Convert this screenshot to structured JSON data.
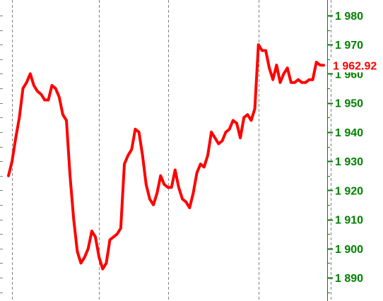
{
  "chart_data": {
    "type": "line",
    "title": "",
    "xlabel": "",
    "ylabel": "",
    "ylim": [
      1885,
      1982
    ],
    "y_ticks": [
      1890,
      1900,
      1910,
      1920,
      1930,
      1940,
      1950,
      1960,
      1970,
      1980
    ],
    "y_tick_labels": [
      "1 890",
      "1 900",
      "1 910",
      "1 920",
      "1 930",
      "1 940",
      "1 950",
      "1 960",
      "1 970",
      "1 980"
    ],
    "y_axis_position": "right",
    "vertical_dividers_at_index": [
      1,
      25,
      44,
      69,
      89
    ],
    "grid": "vertical dashed dividers only",
    "last_value": 1962.92,
    "last_value_label": "1 962.92",
    "colors": {
      "series": "#ff0000",
      "tick_labels": "#008000",
      "axis": "#008000",
      "divider": "#808080",
      "last_value": "#ff0000"
    },
    "series": [
      {
        "values": [
          1925,
          1930,
          1938,
          1945,
          1955,
          1957,
          1960,
          1956,
          1954,
          1953,
          1951,
          1951,
          1956,
          1955,
          1952,
          1946,
          1944,
          1925,
          1910,
          1899,
          1895,
          1897,
          1900,
          1906,
          1904,
          1897,
          1893,
          1895,
          1903,
          1904,
          1905,
          1907,
          1929,
          1932,
          1934,
          1941,
          1940,
          1932,
          1922,
          1917,
          1915,
          1919,
          1925,
          1922,
          1921,
          1921,
          1927,
          1921,
          1917,
          1916,
          1914,
          1919,
          1926,
          1929,
          1928,
          1932,
          1940,
          1938,
          1936,
          1937,
          1940,
          1941,
          1944,
          1943,
          1938,
          1945,
          1946,
          1944,
          1948,
          1970,
          1968,
          1968,
          1962,
          1958,
          1963,
          1957,
          1960,
          1962,
          1957,
          1957,
          1958,
          1957,
          1957,
          1958,
          1958,
          1964,
          1963,
          1962.92
        ]
      }
    ]
  }
}
